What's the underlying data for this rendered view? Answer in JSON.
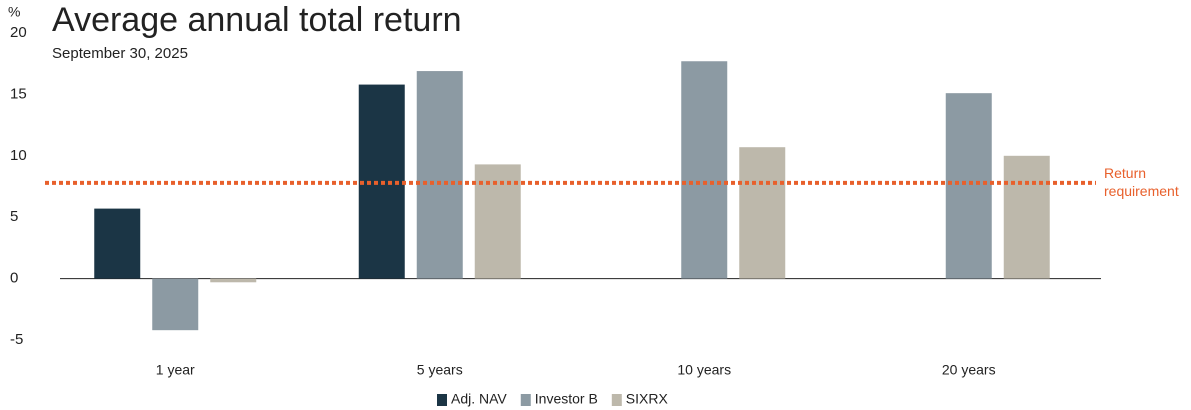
{
  "chart_data": {
    "type": "bar",
    "title": "Average annual total return",
    "subtitle": "September 30, 2025",
    "y_label": "%",
    "categories": [
      "1 year",
      "5 years",
      "10 years",
      "20 years"
    ],
    "series": [
      {
        "name": "Adj. NAV",
        "color": "#1b3545",
        "values": [
          5.7,
          15.8,
          null,
          null
        ]
      },
      {
        "name": "Investor B",
        "color": "#8c9aa3",
        "values": [
          -4.2,
          16.9,
          17.7,
          15.1
        ]
      },
      {
        "name": "SIXRX",
        "color": "#bdb8ab",
        "values": [
          -0.3,
          9.3,
          10.7,
          10.0
        ]
      }
    ],
    "reference_line": {
      "value": 7.8,
      "label": "Return requirement",
      "color": "#e8602c"
    },
    "ylim": [
      -5,
      20
    ],
    "yticks": [
      -5,
      0,
      5,
      10,
      15,
      20
    ],
    "grid": false,
    "legend": "bottom"
  }
}
